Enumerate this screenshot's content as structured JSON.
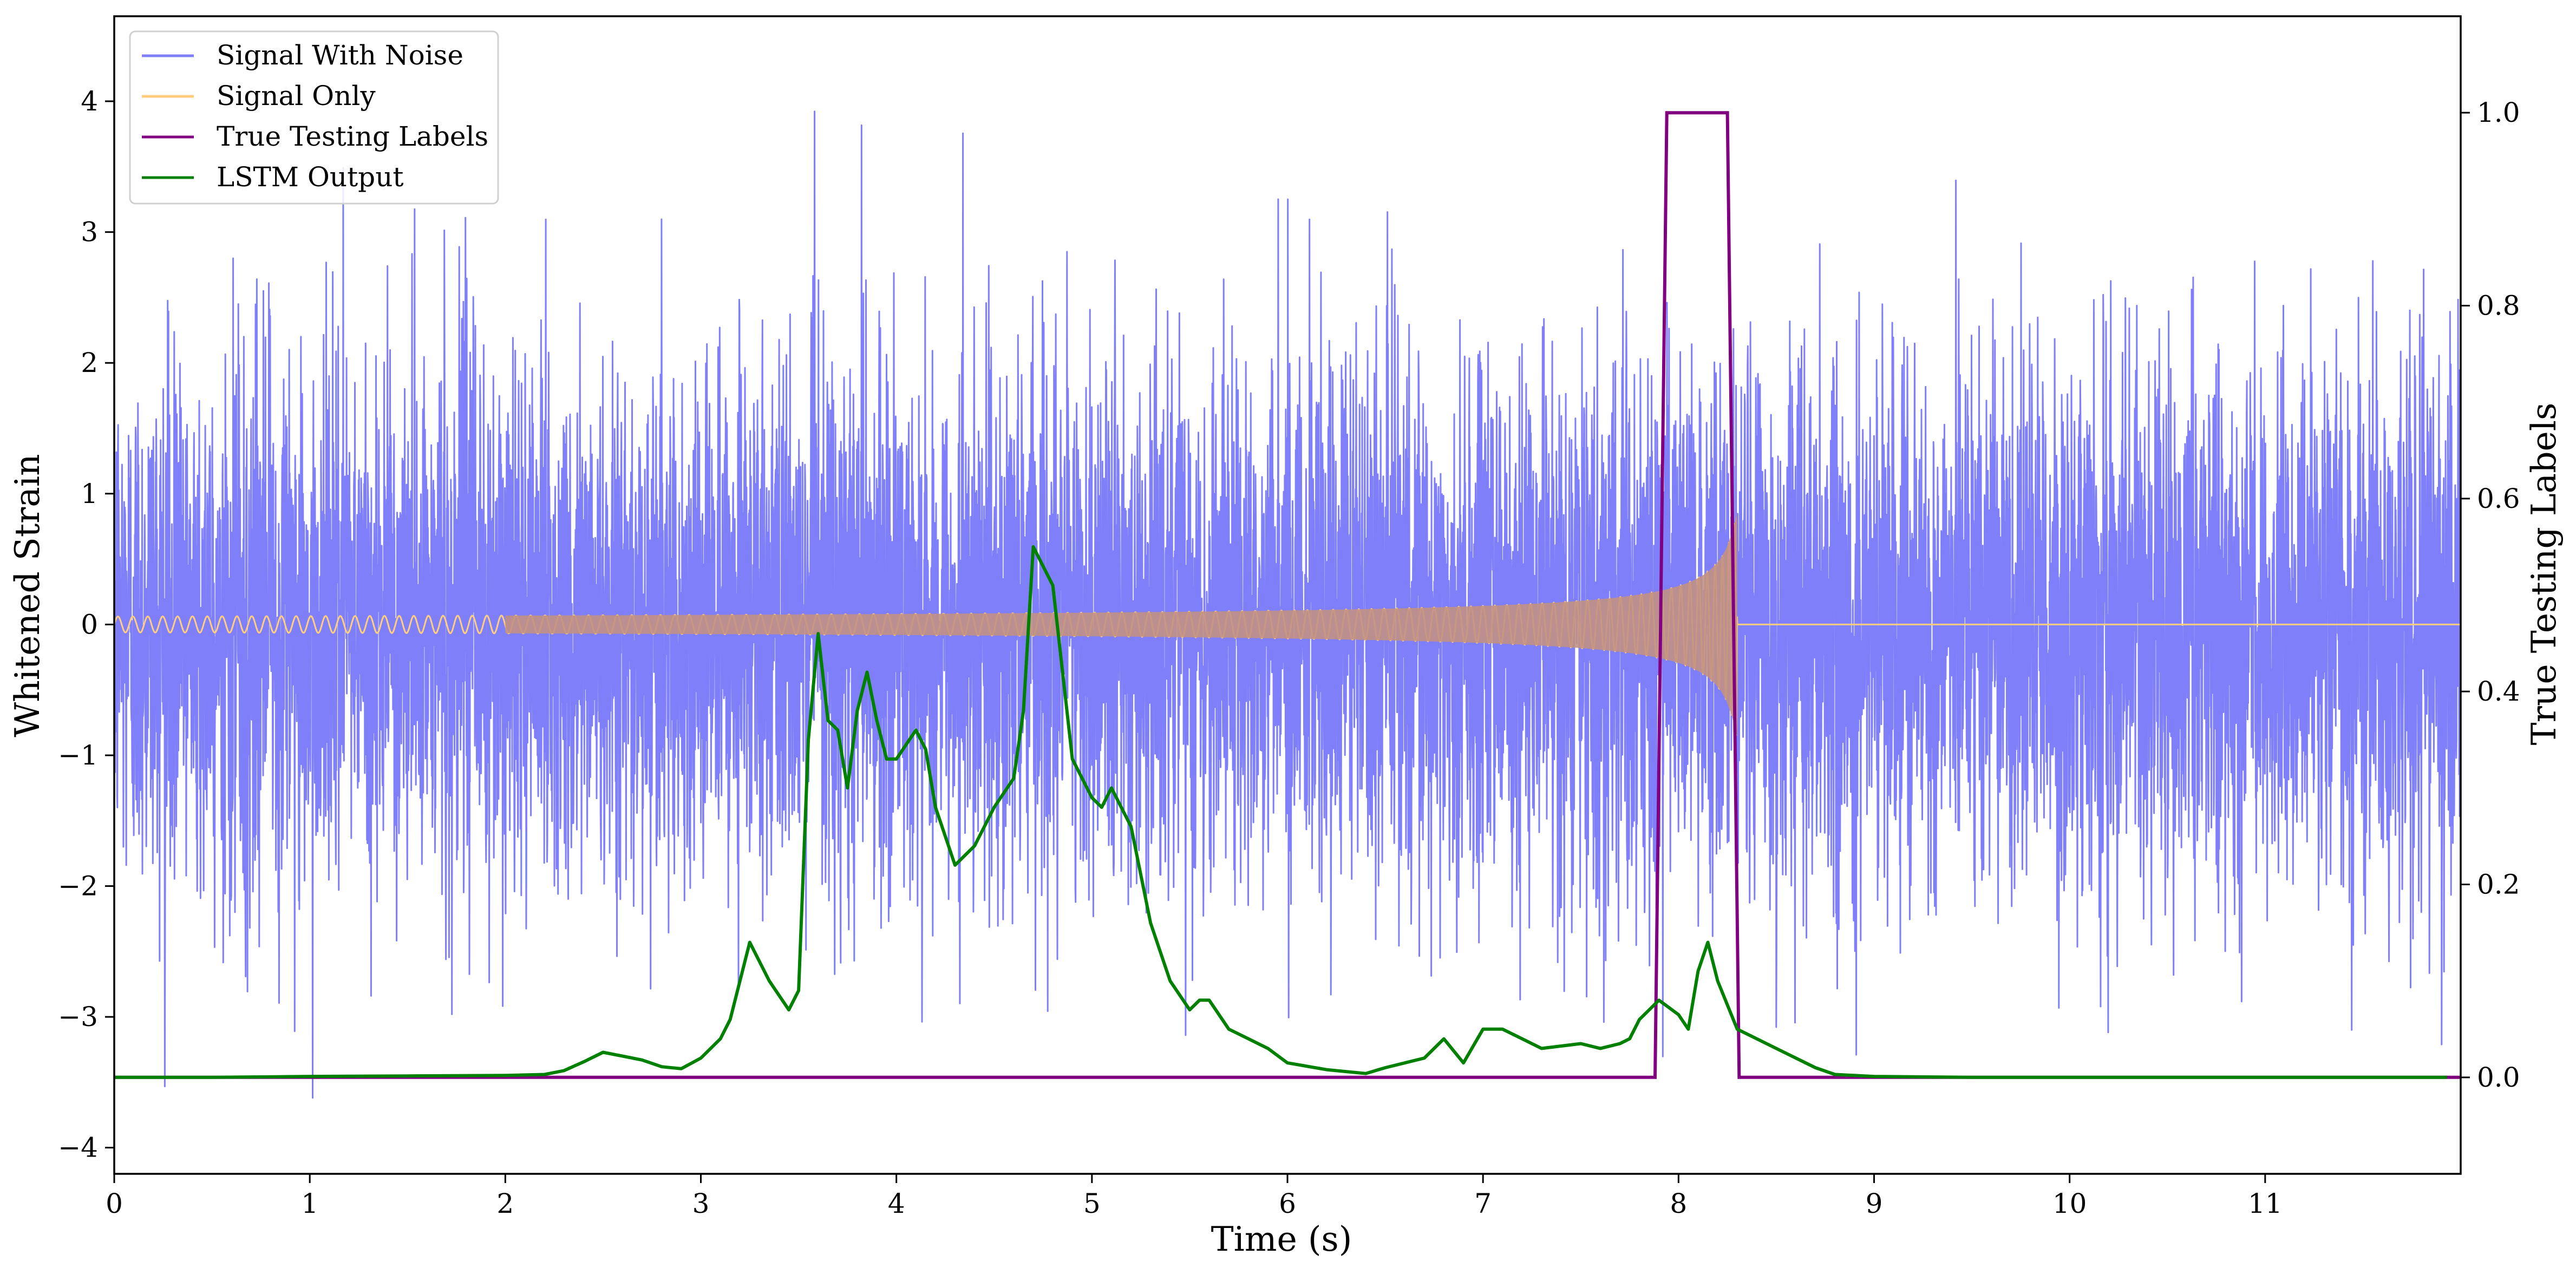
{
  "chart_data": {
    "type": "line",
    "xlabel": "Time (s)",
    "ylabel": "Whitened Strain",
    "y2label": "True Testing Labels",
    "xlim": [
      0,
      12
    ],
    "ylim": [
      -4.2,
      4.65
    ],
    "y2lim": [
      -0.1,
      1.1
    ],
    "grid": false,
    "legend_position": "top-left",
    "x_ticks": [
      "0",
      "1",
      "2",
      "3",
      "4",
      "5",
      "6",
      "7",
      "8",
      "9",
      "10",
      "11"
    ],
    "y_ticks": [
      "4",
      "3",
      "2",
      "1",
      "0",
      "−1",
      "−2",
      "−3",
      "−4"
    ],
    "y_tick_values": [
      4,
      3,
      2,
      1,
      0,
      -1,
      -2,
      -3,
      -4
    ],
    "y2_ticks": [
      "1.0",
      "0.8",
      "0.6",
      "0.4",
      "0.2",
      "0.0"
    ],
    "y2_tick_values": [
      1.0,
      0.8,
      0.6,
      0.4,
      0.2,
      0.0
    ],
    "series": [
      {
        "name": "Signal With Noise",
        "axis": "left",
        "color": "#7f7ffa",
        "description": "dense white noise, roughly between -3.8 and 4.3",
        "noise_envelope": {
          "sigma": 1.0,
          "min": -3.8,
          "max": 4.3
        },
        "x": [
          0,
          12
        ]
      },
      {
        "name": "Signal Only",
        "axis": "left",
        "color": "#ffcd7e",
        "overlap_color": "#c29183",
        "chirp": {
          "t_start": 0,
          "t_merge": 8.3,
          "amp_start": 0.02,
          "amp_merge": 0.9,
          "f_start": 10,
          "f_merge": 60
        }
      },
      {
        "name": "True Testing Labels",
        "axis": "right",
        "color": "#800080",
        "x": [
          0,
          7.88,
          7.94,
          8.25,
          8.31,
          12
        ],
        "y": [
          0,
          0,
          1.0,
          1.0,
          0,
          0
        ]
      },
      {
        "name": "LSTM Output",
        "axis": "right",
        "color": "#008000",
        "x": [
          0,
          0.5,
          1.0,
          1.5,
          2.0,
          2.2,
          2.3,
          2.4,
          2.5,
          2.6,
          2.7,
          2.8,
          2.9,
          3.0,
          3.1,
          3.15,
          3.25,
          3.35,
          3.45,
          3.5,
          3.55,
          3.6,
          3.65,
          3.7,
          3.75,
          3.8,
          3.85,
          3.9,
          3.95,
          4.0,
          4.1,
          4.15,
          4.2,
          4.3,
          4.4,
          4.5,
          4.6,
          4.65,
          4.7,
          4.8,
          4.9,
          5.0,
          5.05,
          5.1,
          5.15,
          5.2,
          5.3,
          5.4,
          5.5,
          5.55,
          5.6,
          5.7,
          5.8,
          5.9,
          6.0,
          6.2,
          6.4,
          6.5,
          6.7,
          6.8,
          6.9,
          7.0,
          7.1,
          7.2,
          7.3,
          7.5,
          7.6,
          7.7,
          7.75,
          7.8,
          7.9,
          8.0,
          8.05,
          8.1,
          8.15,
          8.2,
          8.3,
          8.4,
          8.5,
          8.6,
          8.7,
          8.8,
          9.0,
          9.5,
          10.0,
          11.0,
          11.93
        ],
        "y": [
          0.0,
          0.0,
          0.001,
          0.0015,
          0.002,
          0.003,
          0.007,
          0.016,
          0.026,
          0.022,
          0.018,
          0.011,
          0.009,
          0.02,
          0.04,
          0.06,
          0.14,
          0.1,
          0.07,
          0.09,
          0.35,
          0.46,
          0.37,
          0.36,
          0.3,
          0.38,
          0.42,
          0.37,
          0.33,
          0.33,
          0.36,
          0.34,
          0.28,
          0.22,
          0.24,
          0.28,
          0.31,
          0.38,
          0.55,
          0.51,
          0.33,
          0.29,
          0.28,
          0.3,
          0.28,
          0.26,
          0.16,
          0.1,
          0.07,
          0.08,
          0.08,
          0.05,
          0.04,
          0.03,
          0.015,
          0.008,
          0.004,
          0.01,
          0.02,
          0.04,
          0.015,
          0.05,
          0.05,
          0.04,
          0.03,
          0.035,
          0.03,
          0.035,
          0.04,
          0.06,
          0.08,
          0.065,
          0.05,
          0.11,
          0.14,
          0.1,
          0.05,
          0.04,
          0.03,
          0.02,
          0.01,
          0.003,
          0.001,
          0.0,
          0.0,
          0.0,
          0.0
        ]
      }
    ]
  }
}
